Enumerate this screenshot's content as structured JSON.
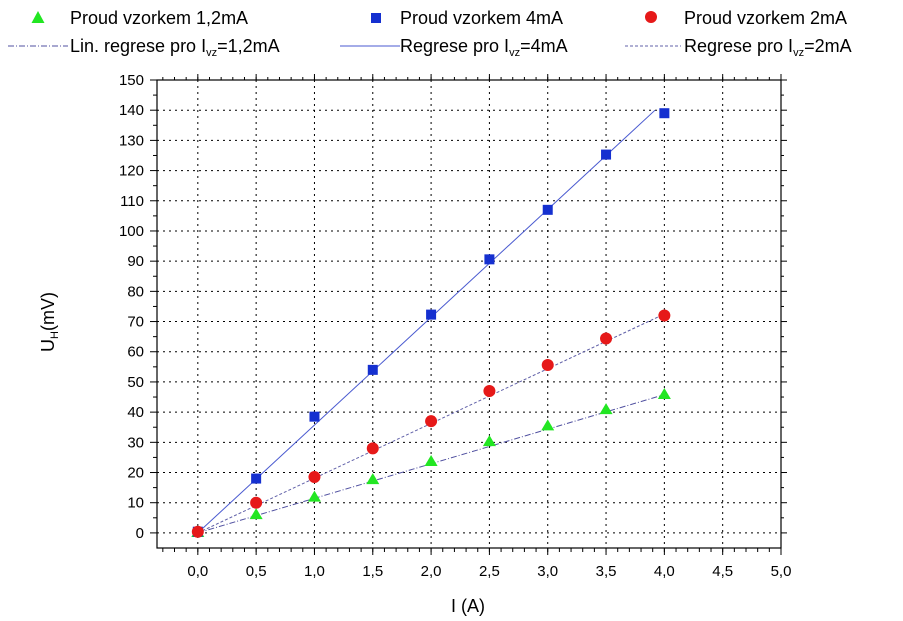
{
  "chart_data": {
    "type": "scatter",
    "xlabel": "I (A)",
    "ylabel_main": "U",
    "ylabel_sub": "H",
    "ylabel_unit": "(mV)",
    "xlim": [
      -0.35,
      5.0
    ],
    "ylim": [
      -5,
      150
    ],
    "x_ticks": [
      "0,0",
      "0,5",
      "1,0",
      "1,5",
      "2,0",
      "2,5",
      "3,0",
      "3,5",
      "4,0",
      "4,5",
      "5,0"
    ],
    "y_ticks": [
      "0",
      "10",
      "20",
      "30",
      "40",
      "50",
      "60",
      "70",
      "80",
      "90",
      "100",
      "110",
      "120",
      "130",
      "140",
      "150"
    ],
    "grid": true,
    "x": [
      0.0,
      0.5,
      1.0,
      1.5,
      2.0,
      2.5,
      3.0,
      3.5,
      4.0
    ],
    "series": [
      {
        "name": "Proud vzorkem 1,2mA",
        "marker": "triangle",
        "color": "#22e622",
        "values": [
          0.3,
          6.2,
          12.0,
          17.8,
          23.8,
          30.4,
          35.6,
          41.0,
          46.0
        ]
      },
      {
        "name": "Proud vzorkem 4mA",
        "marker": "square",
        "color": "#1530d0",
        "values": [
          0.4,
          18.0,
          38.5,
          54.0,
          72.3,
          90.6,
          107.0,
          125.3,
          139.0
        ]
      },
      {
        "name": "Proud vzorkem 2mA",
        "marker": "circle",
        "color": "#e61919",
        "values": [
          0.4,
          10.0,
          18.5,
          28.0,
          37.0,
          47.0,
          55.6,
          64.4,
          72.0
        ]
      }
    ],
    "regressions": [
      {
        "label_prefix": "Lin. regrese pro I",
        "label_sub": "vz",
        "label_suffix": "=1,2mA",
        "style": "dash-dot",
        "color": "#5050a0",
        "x": [
          0.0,
          4.0
        ],
        "y": [
          0.0,
          45.8
        ]
      },
      {
        "label_prefix": "Regrese pro I",
        "label_sub": "vz",
        "label_suffix": "=4mA",
        "style": "solid",
        "color": "#4a5ad0",
        "x": [
          0.0,
          3.92
        ],
        "y": [
          0.0,
          140.0
        ]
      },
      {
        "label_prefix": "Regrese pro I",
        "label_sub": "vz",
        "label_suffix": "=2mA",
        "style": "dashed",
        "color": "#6060a8",
        "x": [
          0.0,
          4.0
        ],
        "y": [
          0.0,
          72.5
        ]
      }
    ]
  }
}
